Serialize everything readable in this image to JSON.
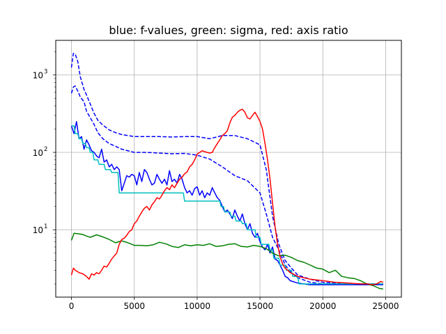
{
  "chart_data": {
    "type": "line",
    "title": "blue: f-values, green: sigma, red: axis ratio",
    "xlabel": "",
    "ylabel": "",
    "yscale": "log",
    "xlim": [
      -1250,
      26250
    ],
    "ylim": [
      1.35,
      2800
    ],
    "grid": true,
    "x_ticks": [
      0,
      5000,
      10000,
      15000,
      20000,
      25000
    ],
    "x_tick_labels": [
      "0",
      "5000",
      "10000",
      "15000",
      "20000",
      "25000"
    ],
    "y_ticks": [
      10,
      100,
      1000
    ],
    "y_tick_labels": [
      {
        "base": "10",
        "exp": "1"
      },
      {
        "base": "10",
        "exp": "2"
      },
      {
        "base": "10",
        "exp": "3"
      }
    ],
    "series": [
      {
        "color": "#0000ff",
        "style": "dashed",
        "x": [
          0,
          150,
          300,
          500,
          700,
          1000,
          1200,
          1500,
          1800,
          2100,
          2500,
          3000,
          3500,
          4000,
          5000,
          6000,
          7000,
          8000,
          9000,
          10000,
          11000,
          12000,
          13000,
          14000,
          15000,
          15500,
          16000,
          16500,
          17000,
          17500,
          18000,
          19000,
          20000,
          21000,
          22000,
          23000,
          24000,
          24800
        ],
        "values": [
          1250,
          1900,
          1850,
          1500,
          950,
          650,
          550,
          420,
          320,
          260,
          225,
          195,
          180,
          170,
          160,
          160,
          160,
          158,
          160,
          160,
          150,
          165,
          165,
          150,
          125,
          60,
          15,
          6.5,
          4,
          3.2,
          2.6,
          2.3,
          2.1,
          2.05,
          2.0,
          2.0,
          2.0,
          2.0
        ]
      },
      {
        "color": "#0000ff",
        "style": "dashed",
        "x": [
          0,
          150,
          300,
          500,
          700,
          1000,
          1200,
          1500,
          1800,
          2100,
          2500,
          3000,
          3500,
          4000,
          5000,
          6000,
          7000,
          8000,
          9000,
          10000,
          11000,
          12000,
          13000,
          14000,
          15000,
          15500,
          16000,
          16500,
          17000,
          17500,
          18000,
          19000,
          20000,
          21000,
          22000,
          23000,
          24000,
          24800
        ],
        "values": [
          580,
          700,
          720,
          620,
          520,
          450,
          340,
          280,
          230,
          180,
          150,
          130,
          120,
          110,
          100,
          100,
          98,
          96,
          97,
          92,
          82,
          65,
          50,
          43,
          30,
          16,
          8,
          5.5,
          3.5,
          2.8,
          2.4,
          2.1,
          2.0,
          2.0,
          1.95,
          1.95,
          1.95,
          1.95
        ]
      },
      {
        "color": "#0000ff",
        "style": "solid",
        "x": [
          0,
          200,
          400,
          600,
          800,
          1000,
          1200,
          1400,
          1600,
          1800,
          2000,
          2200,
          2400,
          2600,
          2800,
          3000,
          3200,
          3400,
          3600,
          3800,
          4000,
          4200,
          4400,
          4600,
          4800,
          5000,
          5200,
          5400,
          5600,
          5800,
          6000,
          6200,
          6400,
          6600,
          6800,
          7000,
          7200,
          7400,
          7600,
          7800,
          8000,
          8200,
          8400,
          8600,
          8800,
          9000,
          9200,
          9400,
          9600,
          9800,
          10000,
          10200,
          10400,
          10600,
          10800,
          11000,
          11200,
          11400,
          11600,
          11800,
          12000,
          12200,
          12400,
          12600,
          12800,
          13000,
          13200,
          13400,
          13600,
          13800,
          14000,
          14200,
          14400,
          14600,
          14800,
          15000,
          15200,
          15400,
          15600,
          15800,
          16000,
          16200,
          16400,
          16600,
          16800,
          17000,
          17200,
          17400,
          17600,
          17800,
          18000,
          18500,
          19000,
          19500,
          20000,
          21000,
          22000,
          23000,
          24000,
          24800
        ],
        "values": [
          220,
          175,
          250,
          150,
          160,
          110,
          145,
          125,
          105,
          100,
          90,
          85,
          110,
          75,
          80,
          65,
          70,
          60,
          65,
          60,
          32,
          40,
          50,
          48,
          52,
          50,
          38,
          55,
          42,
          60,
          55,
          45,
          38,
          40,
          52,
          45,
          40,
          45,
          38,
          58,
          42,
          45,
          40,
          52,
          45,
          35,
          30,
          32,
          28,
          34,
          36,
          28,
          32,
          26,
          30,
          28,
          35,
          30,
          26,
          24,
          20,
          17,
          18,
          16,
          14,
          18,
          15,
          13,
          16,
          12,
          10,
          12,
          9,
          8,
          9,
          7,
          6,
          5.5,
          6.5,
          5,
          6,
          4.2,
          4,
          3.5,
          3,
          2.5,
          2.4,
          2.2,
          2.15,
          2.1,
          2.05,
          2.0,
          1.95,
          1.95,
          1.95,
          1.95,
          1.95,
          1.95,
          1.95,
          1.95
        ]
      },
      {
        "color": "#00bfbf",
        "style": "solid",
        "x": [
          0,
          200,
          300,
          500,
          600,
          800,
          900,
          1100,
          1200,
          1400,
          1500,
          1700,
          1800,
          2100,
          2200,
          2600,
          2700,
          3100,
          3200,
          3700,
          3800,
          8900,
          9000,
          11800,
          11900,
          12100,
          12200,
          12600,
          12700,
          13000,
          13100,
          13500,
          13600,
          13900,
          14000,
          14600,
          14700,
          15000,
          15100,
          15700,
          15800,
          16000,
          16100,
          16500,
          16600,
          17000,
          17100,
          17500,
          17600,
          18000,
          18100,
          24800
        ],
        "values": [
          220,
          220,
          175,
          175,
          150,
          150,
          130,
          130,
          115,
          115,
          100,
          100,
          80,
          80,
          70,
          70,
          60,
          60,
          55,
          55,
          30,
          30,
          23.5,
          23.5,
          20,
          20,
          17,
          17,
          15,
          15,
          13,
          13,
          12,
          12,
          10,
          10,
          8,
          8,
          6.5,
          6.5,
          5.5,
          5.5,
          4.3,
          4.3,
          3.5,
          3.5,
          3.0,
          3.0,
          2.5,
          2.5,
          2.0,
          2.0
        ]
      },
      {
        "color": "#008000",
        "style": "solid",
        "x": [
          0,
          200,
          500,
          900,
          1200,
          1500,
          2000,
          2500,
          3000,
          3500,
          4000,
          4500,
          5000,
          5500,
          6000,
          6500,
          7000,
          7500,
          8000,
          8500,
          9000,
          9500,
          10000,
          10500,
          11000,
          11500,
          12000,
          12500,
          13000,
          13500,
          14000,
          14500,
          15000,
          15500,
          16000,
          16500,
          17000,
          17500,
          18000,
          18500,
          19000,
          19500,
          20000,
          20500,
          21000,
          21500,
          22000,
          22500,
          23000,
          23500,
          24000,
          24500,
          24800
        ],
        "values": [
          7.3,
          9.0,
          8.9,
          8.7,
          8.3,
          8.0,
          8.6,
          8.1,
          7.5,
          6.8,
          7.2,
          6.8,
          6.3,
          6.3,
          6.2,
          6.4,
          6.9,
          6.6,
          6.1,
          5.9,
          6.4,
          6.2,
          6.4,
          6.3,
          6.6,
          6.1,
          6.2,
          6.5,
          6.6,
          6.1,
          6.0,
          6.3,
          6.1,
          5.7,
          5.0,
          4.6,
          4.7,
          4.4,
          4.0,
          3.8,
          3.5,
          3.2,
          3.1,
          2.8,
          3.0,
          2.5,
          2.4,
          2.35,
          2.2,
          2.0,
          1.9,
          1.75,
          1.72
        ]
      },
      {
        "color": "#ff0000",
        "style": "solid",
        "x": [
          0,
          150,
          300,
          600,
          900,
          1200,
          1400,
          1600,
          1800,
          2000,
          2200,
          2400,
          2600,
          2800,
          3000,
          3200,
          3400,
          3600,
          3800,
          4000,
          4200,
          4400,
          4600,
          4800,
          5000,
          5200,
          5400,
          5600,
          5800,
          6000,
          6200,
          6400,
          6600,
          6800,
          7000,
          7200,
          7400,
          7600,
          7800,
          8000,
          8200,
          8400,
          8600,
          8800,
          9000,
          9200,
          9400,
          9600,
          9800,
          10000,
          10200,
          10400,
          10600,
          10800,
          11000,
          11200,
          11400,
          11600,
          11800,
          12000,
          12200,
          12400,
          12600,
          12800,
          13000,
          13200,
          13400,
          13600,
          13800,
          14000,
          14200,
          14400,
          14600,
          14800,
          15000,
          15200,
          15400,
          15600,
          15800,
          16000,
          16200,
          16400,
          16600,
          16800,
          17000,
          17200,
          17400,
          17600,
          17800,
          18000,
          18500,
          19000,
          19500,
          20000,
          21000,
          22000,
          23000,
          23500,
          24000,
          24300,
          24600,
          24800
        ],
        "values": [
          2.6,
          3.2,
          3.0,
          2.8,
          2.7,
          2.5,
          2.3,
          2.7,
          2.6,
          2.8,
          2.7,
          3.0,
          3.4,
          3.3,
          3.7,
          4.2,
          4.6,
          5.0,
          6.5,
          7.5,
          7.8,
          8.5,
          9.5,
          10.0,
          12.0,
          13.0,
          15.0,
          17.0,
          19.0,
          20.0,
          18.0,
          21.0,
          23.0,
          26.0,
          25.0,
          28.0,
          32.0,
          35.0,
          33.0,
          38.0,
          35.0,
          40.0,
          45.0,
          48.0,
          53.0,
          56.0,
          65.0,
          70.0,
          80.0,
          95.0,
          100.0,
          105.0,
          102.0,
          100.0,
          98.0,
          100.0,
          115.0,
          130.0,
          145.0,
          165.0,
          175.0,
          190.0,
          240.0,
          285.0,
          300.0,
          330.0,
          350.0,
          360.0,
          330.0,
          280.0,
          270.0,
          300.0,
          330.0,
          290.0,
          250.0,
          200.0,
          130.0,
          80.0,
          45.0,
          22.0,
          11.0,
          6.5,
          4.5,
          3.6,
          3.2,
          3.0,
          2.8,
          2.7,
          2.6,
          2.5,
          2.4,
          2.3,
          2.25,
          2.2,
          2.1,
          2.05,
          2.0,
          2.0,
          1.95,
          2.0,
          2.15,
          2.1
        ]
      }
    ]
  }
}
